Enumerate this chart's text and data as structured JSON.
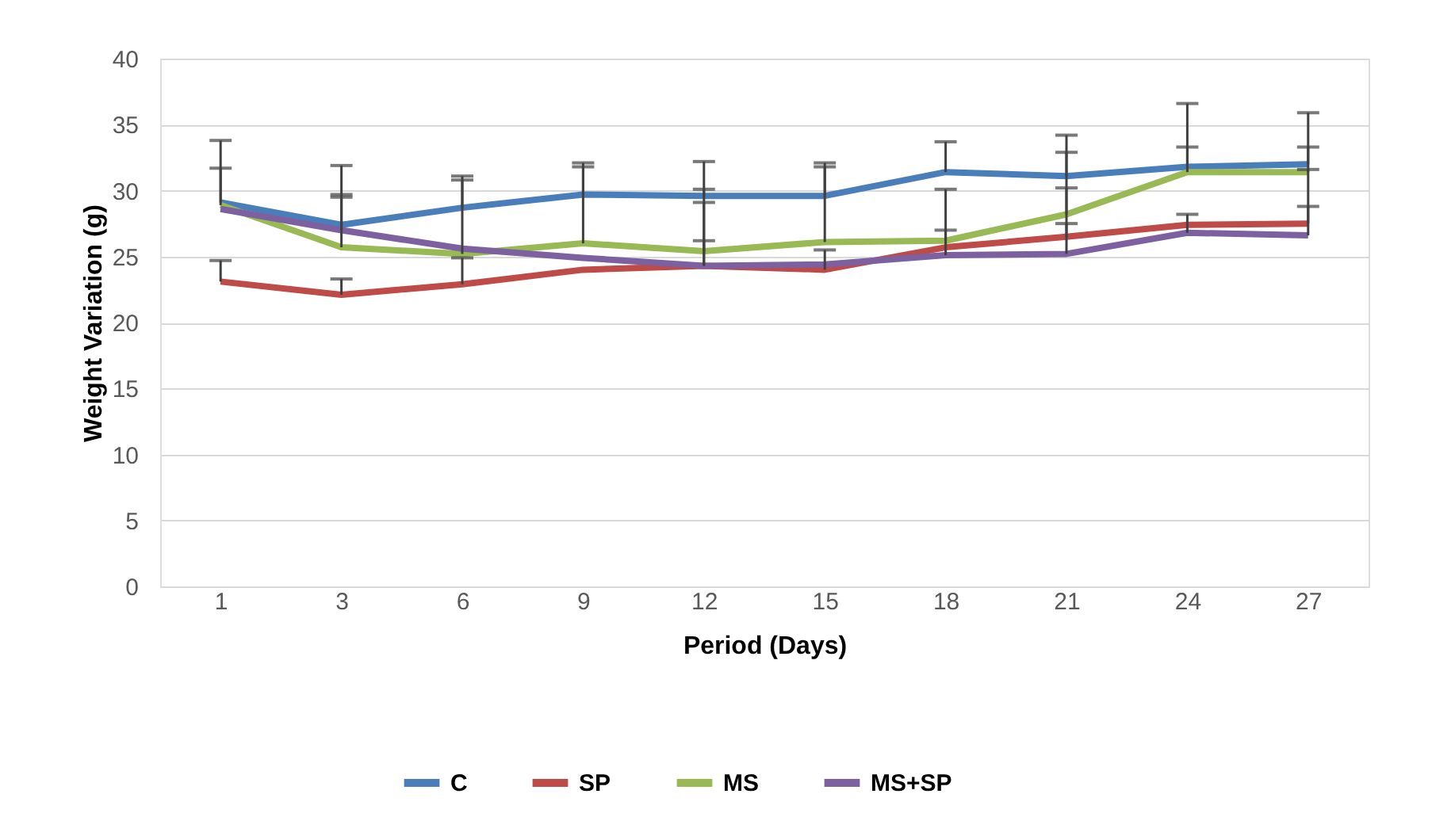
{
  "chart_data": {
    "type": "line",
    "xlabel": "Period (Days)",
    "ylabel": "Weight Variation (g)",
    "categories": [
      "1",
      "3",
      "6",
      "9",
      "12",
      "15",
      "18",
      "21",
      "24",
      "27"
    ],
    "series": [
      {
        "name": "C",
        "color": "#4a7ebb",
        "values": [
          29.1,
          27.4,
          28.7,
          29.7,
          29.6,
          29.6,
          31.4,
          31.1,
          31.8,
          32.0
        ],
        "errors": [
          [
            29.1,
            33.8
          ],
          [
            27.4,
            31.9
          ],
          [
            28.7,
            31.1
          ],
          [
            29.7,
            32.1
          ],
          [
            29.6,
            32.2
          ],
          [
            29.6,
            32.1
          ],
          [
            31.4,
            33.7
          ],
          [
            31.1,
            34.2
          ],
          [
            31.8,
            36.6
          ],
          [
            32.0,
            35.9
          ]
        ]
      },
      {
        "name": "SP",
        "color": "#be4b48",
        "values": [
          23.1,
          22.1,
          22.9,
          24.0,
          24.3,
          24.0,
          25.7,
          26.5,
          27.4,
          27.5
        ],
        "errors": [
          [
            23.1,
            24.7
          ],
          [
            22.1,
            23.3
          ],
          [
            22.9,
            24.9
          ],
          null,
          [
            24.3,
            26.2
          ],
          [
            24.0,
            25.5
          ],
          null,
          [
            26.5,
            27.5
          ],
          null,
          [
            27.5,
            28.8
          ]
        ]
      },
      {
        "name": "MS",
        "color": "#98b954",
        "values": [
          28.9,
          25.7,
          25.2,
          26.0,
          25.4,
          26.1,
          26.2,
          28.2,
          31.4,
          31.4
        ],
        "errors": [
          [
            28.9,
            31.7
          ],
          [
            25.7,
            29.7
          ],
          [
            25.2,
            30.8
          ],
          [
            26.0,
            31.8
          ],
          [
            25.4,
            30.1
          ],
          [
            26.1,
            31.8
          ],
          [
            26.2,
            30.1
          ],
          [
            28.2,
            32.9
          ],
          [
            31.4,
            33.3
          ],
          [
            31.4,
            33.3
          ]
        ]
      },
      {
        "name": "MS+SP",
        "color": "#7d60a0",
        "values": [
          28.6,
          27.0,
          25.6,
          24.9,
          24.3,
          24.4,
          25.1,
          25.2,
          26.8,
          26.6
        ],
        "errors": [
          null,
          [
            27.0,
            29.5
          ],
          null,
          null,
          [
            24.3,
            29.1
          ],
          null,
          [
            25.1,
            27.0
          ],
          [
            25.2,
            30.2
          ],
          [
            26.8,
            28.2
          ],
          [
            26.6,
            31.6
          ]
        ]
      }
    ],
    "ylim": [
      0,
      40
    ],
    "yticks": [
      0,
      5,
      10,
      15,
      20,
      25,
      30,
      35,
      40
    ],
    "grid": "y",
    "legend": "bottom",
    "marker": "none",
    "line_style": "solid"
  }
}
